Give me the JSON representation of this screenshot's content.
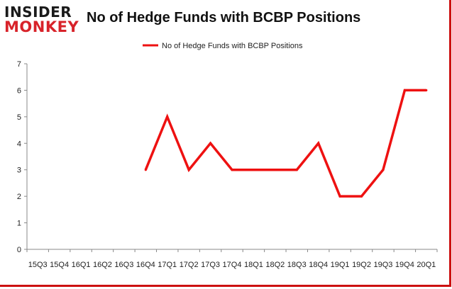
{
  "header": {
    "logo_top": "INSIDER",
    "logo_bottom": "MONKEY",
    "title": "No of Hedge Funds with BCBP Positions"
  },
  "colors": {
    "series": "#ee1111",
    "brand_red": "#d8232a",
    "axis": "#888888"
  },
  "chart_data": {
    "type": "line",
    "title": "No of Hedge Funds with BCBP Positions",
    "xlabel": "",
    "ylabel": "",
    "ylim": [
      0,
      7
    ],
    "yticks": [
      "0",
      "1",
      "2",
      "3",
      "4",
      "5",
      "6",
      "7"
    ],
    "grid": false,
    "legend_position": "top",
    "categories": [
      "15Q3",
      "15Q4",
      "16Q1",
      "16Q2",
      "16Q3",
      "16Q4",
      "17Q1",
      "17Q2",
      "17Q3",
      "17Q4",
      "18Q1",
      "18Q2",
      "18Q3",
      "18Q4",
      "19Q1",
      "19Q2",
      "19Q3",
      "19Q4",
      "20Q1"
    ],
    "series": [
      {
        "name": "No of Hedge Funds with BCBP Positions",
        "values": [
          null,
          null,
          null,
          null,
          null,
          3,
          5,
          3,
          4,
          3,
          3,
          3,
          3,
          4,
          2,
          2,
          3,
          6,
          6
        ]
      }
    ]
  }
}
